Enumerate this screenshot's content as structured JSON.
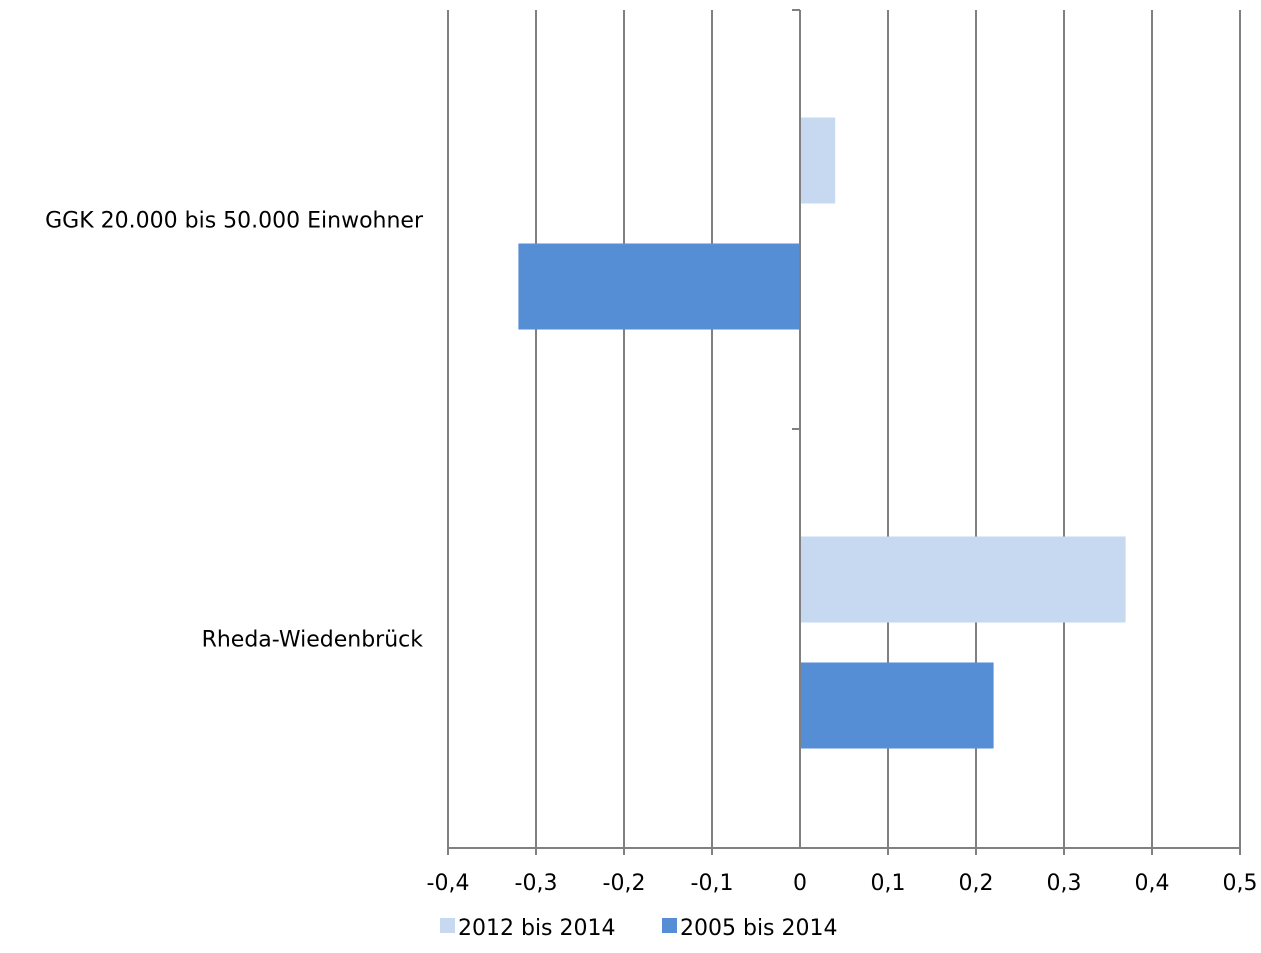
{
  "chart_data": {
    "type": "bar",
    "orientation": "horizontal",
    "title": "",
    "xlabel": "",
    "ylabel": "",
    "categories": [
      "GGK 20.000 bis 50.000 Einwohner",
      "Rheda-Wiedenbrück"
    ],
    "series": [
      {
        "name": "2012 bis 2014",
        "values": [
          0.04,
          0.37
        ],
        "color": "#c6d9f1"
      },
      {
        "name": "2005 bis 2014",
        "values": [
          -0.32,
          0.22
        ],
        "color": "#558ed5"
      }
    ],
    "xlim": [
      -0.4,
      0.5
    ],
    "xticks": [
      -0.4,
      -0.3,
      -0.2,
      -0.1,
      0,
      0.1,
      0.2,
      0.3,
      0.4,
      0.5
    ],
    "xtick_labels": [
      "-0,4",
      "-0,3",
      "-0,2",
      "-0,1",
      "0",
      "0,1",
      "0,2",
      "0,3",
      "0,4",
      "0,5"
    ],
    "grid": "vertical",
    "legend": "bottom",
    "gridline_color": "#808080"
  }
}
